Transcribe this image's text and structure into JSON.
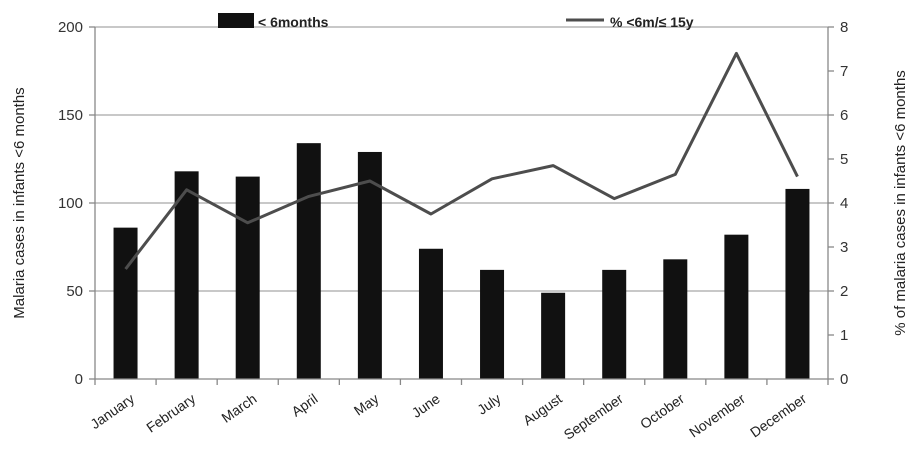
{
  "chart_data": {
    "type": "bar",
    "categories": [
      "January",
      "February",
      "March",
      "April",
      "May",
      "June",
      "July",
      "August",
      "September",
      "October",
      "November",
      "December"
    ],
    "series": [
      {
        "name": "< 6months",
        "type": "bar",
        "axis": "left",
        "values": [
          86,
          118,
          115,
          134,
          129,
          74,
          62,
          49,
          62,
          68,
          82,
          108
        ]
      },
      {
        "name": "% <6m/≤ 15y",
        "type": "line",
        "axis": "right",
        "values": [
          2.5,
          4.3,
          3.55,
          4.15,
          4.5,
          3.75,
          4.55,
          4.85,
          4.1,
          4.65,
          7.4,
          4.6
        ]
      }
    ],
    "ylabel": "Malaria cases in infants <6 months",
    "y2label": "% of malaria cases in infants <6 months",
    "ylim": [
      0,
      200
    ],
    "y2lim": [
      0,
      8
    ],
    "yticks": [
      "0",
      "50",
      "100",
      "150",
      "200"
    ],
    "y2ticks": [
      "0",
      "1",
      "2",
      "3",
      "4",
      "5",
      "6",
      "7",
      "8"
    ],
    "grid": true,
    "legend_position": "top",
    "colors": {
      "bar": "#111111",
      "line": "#4d4d4d",
      "grid": "#a6a6a6",
      "axis": "#888888"
    }
  }
}
